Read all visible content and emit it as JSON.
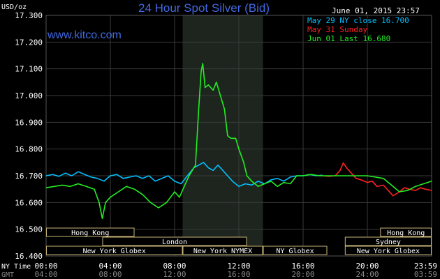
{
  "chart_data": {
    "type": "line",
    "title": "24 Hour Spot Silver (Bid)",
    "date_label": "June 01, 2015 23:57",
    "watermark": "www.kitco.com",
    "ylabel": "USD/oz",
    "ylim": [
      16.4,
      17.3
    ],
    "y_ticks": [
      "17.300",
      "17.200",
      "17.100",
      "17.000",
      "16.900",
      "16.800",
      "16.700",
      "16.600",
      "16.500",
      "16.400"
    ],
    "xlim": [
      0,
      24
    ],
    "x_tick_labels_ny": [
      "00:00",
      "04:00",
      "08:00",
      "12:00",
      "16:00",
      "20:00",
      "23:59"
    ],
    "x_tick_labels_gmt": [
      "04:00",
      "08:00",
      "12:00",
      "16:00",
      "20:00",
      "24:00",
      "03:59"
    ],
    "row_label_ny": "NY Time",
    "row_label_gmt": "GMT",
    "grid": true,
    "legend_position": "top-right",
    "colors": {
      "background": "#000000",
      "grid": "#3a3a3a",
      "axis_text": "#ffffff",
      "title": "#4169e1",
      "watermark": "#4169e1",
      "shade": "#1e251e",
      "session_border": "#c8b478",
      "session_text": "#ffffff"
    },
    "shaded_region": [
      8.5,
      13.5
    ],
    "legend": [
      {
        "text": "May 29 NY close 16.700",
        "color": "#00bfff"
      },
      {
        "text": "May 31 Sunday",
        "color": "#ff2020"
      },
      {
        "text": "Jun 01 Last 16.680",
        "color": "#22ee22"
      }
    ],
    "series": [
      {
        "name": "May 29 NY close 16.700",
        "color": "#00bfff",
        "x": [
          0,
          0.4,
          0.8,
          1.2,
          1.6,
          2,
          2.4,
          2.8,
          3.2,
          3.6,
          4,
          4.4,
          4.8,
          5.2,
          5.6,
          6,
          6.4,
          6.8,
          7.2,
          7.6,
          8,
          8.4,
          8.8,
          9.2,
          9.5,
          9.8,
          10.1,
          10.4,
          10.7,
          11,
          11.3,
          11.6,
          12,
          12.4,
          12.8,
          13.2,
          13.6,
          14,
          14.4,
          14.8,
          15.2,
          15.6,
          16,
          16.4,
          16.8,
          17.2
        ],
        "y": [
          16.7,
          16.705,
          16.698,
          16.71,
          16.7,
          16.715,
          16.705,
          16.695,
          16.69,
          16.68,
          16.7,
          16.705,
          16.69,
          16.695,
          16.7,
          16.69,
          16.7,
          16.68,
          16.69,
          16.7,
          16.68,
          16.67,
          16.7,
          16.73,
          16.74,
          16.75,
          16.73,
          16.72,
          16.74,
          16.72,
          16.7,
          16.68,
          16.66,
          16.67,
          16.665,
          16.68,
          16.67,
          16.685,
          16.69,
          16.68,
          16.695,
          16.7,
          16.7,
          16.705,
          16.7,
          16.702
        ]
      },
      {
        "name": "May 31 Sunday",
        "color": "#ff2020",
        "x": [
          17.2,
          17.6,
          18,
          18.3,
          18.5,
          18.7,
          19,
          19.3,
          19.6,
          20,
          20.3,
          20.6,
          21,
          21.3,
          21.6,
          22,
          22.3,
          22.6,
          23,
          23.3,
          23.6,
          24
        ],
        "y": [
          16.7,
          16.698,
          16.7,
          16.72,
          16.748,
          16.73,
          16.71,
          16.69,
          16.685,
          16.675,
          16.68,
          16.66,
          16.665,
          16.645,
          16.625,
          16.64,
          16.655,
          16.65,
          16.645,
          16.655,
          16.65,
          16.645
        ]
      },
      {
        "name": "Jun 01 Last 16.680",
        "color": "#22ee22",
        "x": [
          0,
          0.5,
          1,
          1.5,
          2,
          2.5,
          3,
          3.3,
          3.5,
          3.7,
          4,
          4.5,
          5,
          5.5,
          6,
          6.5,
          7,
          7.5,
          8,
          8.3,
          8.6,
          8.9,
          9.1,
          9.3,
          9.5,
          9.65,
          9.75,
          9.9,
          10.1,
          10.4,
          10.6,
          10.9,
          11.1,
          11.3,
          11.5,
          11.8,
          12,
          12.3,
          12.5,
          12.8,
          13.2,
          13.6,
          14,
          14.4,
          14.8,
          15.2,
          15.6,
          16,
          16.5,
          17,
          18,
          19,
          20,
          21,
          22,
          22.5,
          23,
          23.5,
          24
        ],
        "y": [
          16.655,
          16.66,
          16.665,
          16.66,
          16.67,
          16.66,
          16.65,
          16.6,
          16.54,
          16.6,
          16.62,
          16.64,
          16.66,
          16.65,
          16.63,
          16.6,
          16.58,
          16.6,
          16.64,
          16.62,
          16.66,
          16.7,
          16.72,
          16.74,
          16.95,
          17.09,
          17.12,
          17.03,
          17.04,
          17.02,
          17.05,
          16.99,
          16.95,
          16.85,
          16.84,
          16.84,
          16.8,
          16.75,
          16.7,
          16.68,
          16.66,
          16.67,
          16.68,
          16.66,
          16.675,
          16.67,
          16.7,
          16.7,
          16.705,
          16.7,
          16.7,
          16.7,
          16.7,
          16.69,
          16.64,
          16.645,
          16.66,
          16.67,
          16.68
        ]
      }
    ],
    "sessions": [
      {
        "label": "Hong Kong",
        "start": 0,
        "end": 5.5,
        "row": 0
      },
      {
        "label": "Hong Kong",
        "start": 20.8,
        "end": 24,
        "row": 0
      },
      {
        "label": "London",
        "start": 3.5,
        "end": 12.5,
        "row": 1
      },
      {
        "label": "Sydney",
        "start": 18.6,
        "end": 24,
        "row": 1
      },
      {
        "label": "New York Globex",
        "start": 0,
        "end": 8.5,
        "row": 2
      },
      {
        "label": "New York NYMEX",
        "start": 8.5,
        "end": 13.5,
        "row": 2
      },
      {
        "label": "NY Globex",
        "start": 13.5,
        "end": 17.5,
        "row": 2
      },
      {
        "label": "New York Globex",
        "start": 18.6,
        "end": 24,
        "row": 2
      }
    ]
  }
}
